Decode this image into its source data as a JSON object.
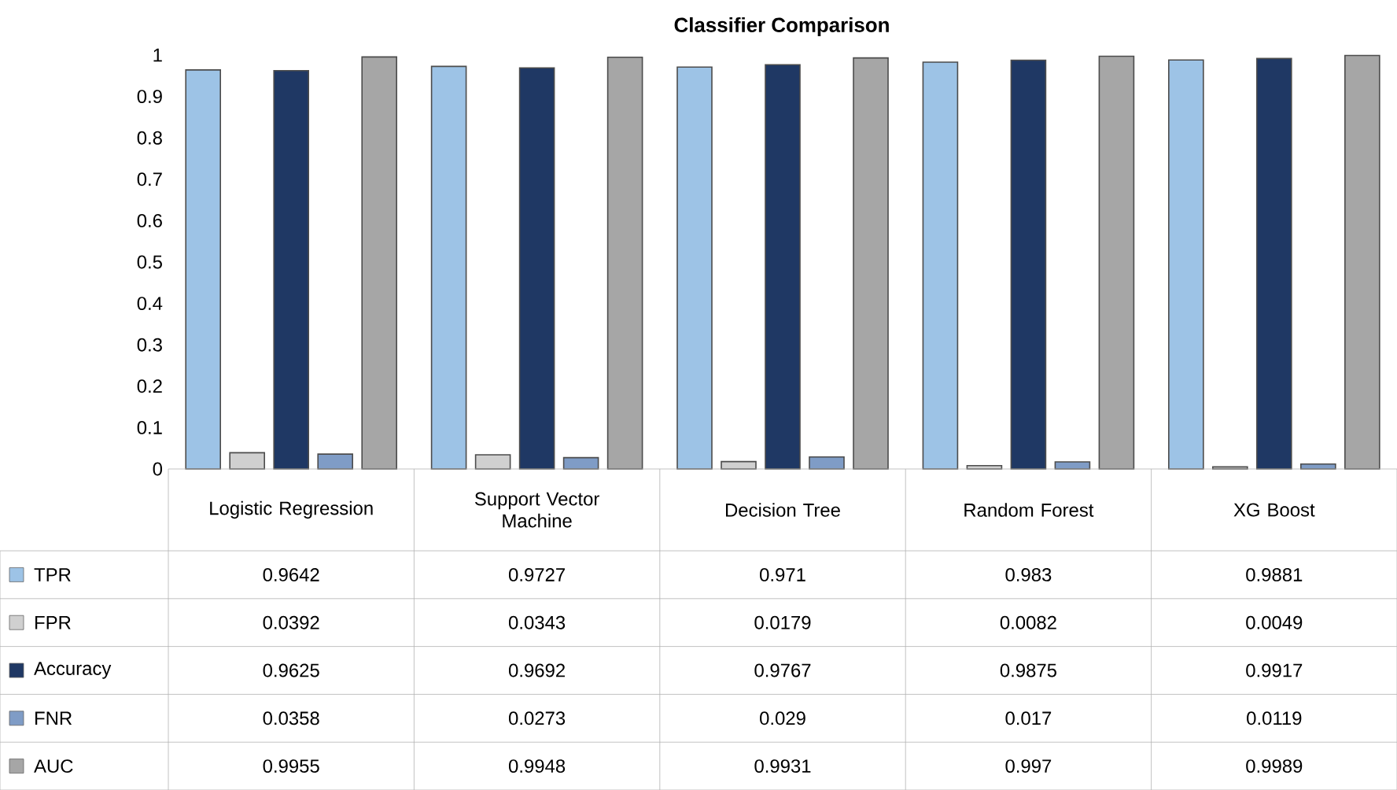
{
  "chart_data": {
    "type": "bar",
    "title": "Classifier Comparison",
    "categories": [
      "Logistic Regression",
      "Support Vector Machine",
      "Decision Tree",
      "Random Forest",
      "XG Boost"
    ],
    "series": [
      {
        "name": "TPR",
        "color": "#9dc3e6",
        "values": [
          0.9642,
          0.9727,
          0.971,
          0.983,
          0.9881
        ]
      },
      {
        "name": "FPR",
        "color": "#d0d0d0",
        "values": [
          0.0392,
          0.0343,
          0.0179,
          0.0082,
          0.0049
        ]
      },
      {
        "name": "Accuracy",
        "color": "#1f3864",
        "values": [
          0.9625,
          0.9692,
          0.9767,
          0.9875,
          0.9917
        ]
      },
      {
        "name": "FNR",
        "color": "#7f9cc6",
        "values": [
          0.0358,
          0.0273,
          0.029,
          0.017,
          0.0119
        ]
      },
      {
        "name": "AUC",
        "color": "#a6a6a6",
        "values": [
          0.9955,
          0.9948,
          0.9931,
          0.997,
          0.9989
        ]
      }
    ],
    "ylim": [
      0,
      1
    ],
    "yticks": [
      0,
      0.1,
      0.2,
      0.3,
      0.4,
      0.5,
      0.6,
      0.7,
      0.8,
      0.9,
      1
    ],
    "data_labels": true,
    "legend": "bottom"
  }
}
